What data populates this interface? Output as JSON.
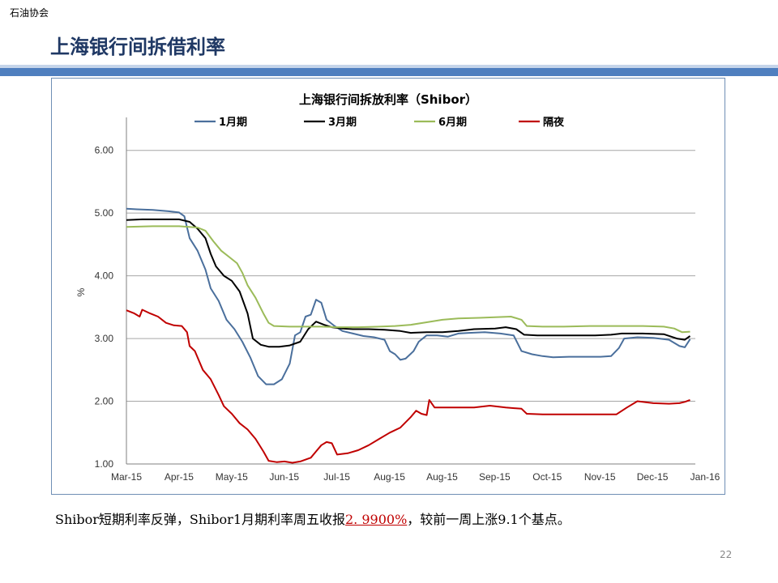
{
  "header": {
    "org": "石油协会",
    "title": "上海银行间拆借利率"
  },
  "caption": {
    "prefix": "Shibor短期利率反弹，Shibor1月期利率周五收报",
    "highlight": "2. 9900%",
    "suffix": "，较前一周上涨9.1个基点。"
  },
  "page_number": "22",
  "chart_data": {
    "type": "line",
    "title": "上海银行间拆放利率（Shibor）",
    "ylabel": "%",
    "xlabel": "",
    "ylim": [
      1.0,
      6.5
    ],
    "yticks": [
      "1.00",
      "2.00",
      "3.00",
      "4.00",
      "5.00",
      "6.00"
    ],
    "ytick_values": [
      1,
      2,
      3,
      4,
      5,
      6
    ],
    "xticks": [
      "Mar-15",
      "Apr-15",
      "May-15",
      "Jun-15",
      "Jul-15",
      "Aug-15",
      "Aug-15",
      "Sep-15",
      "Oct-15",
      "Nov-15",
      "Dec-15",
      "Jan-16"
    ],
    "grid": true,
    "legend_position": "top",
    "x_range": [
      0,
      10.8
    ],
    "series": [
      {
        "name": "1月期",
        "color": "#4a6f9c",
        "points": [
          [
            0,
            5.07
          ],
          [
            0.2,
            5.06
          ],
          [
            0.5,
            5.05
          ],
          [
            0.8,
            5.03
          ],
          [
            1.0,
            5.01
          ],
          [
            1.1,
            4.95
          ],
          [
            1.2,
            4.6
          ],
          [
            1.35,
            4.4
          ],
          [
            1.5,
            4.1
          ],
          [
            1.6,
            3.8
          ],
          [
            1.75,
            3.6
          ],
          [
            1.9,
            3.3
          ],
          [
            2.05,
            3.15
          ],
          [
            2.2,
            2.95
          ],
          [
            2.35,
            2.7
          ],
          [
            2.5,
            2.4
          ],
          [
            2.65,
            2.27
          ],
          [
            2.8,
            2.27
          ],
          [
            2.95,
            2.35
          ],
          [
            3.1,
            2.6
          ],
          [
            3.2,
            3.05
          ],
          [
            3.3,
            3.1
          ],
          [
            3.4,
            3.35
          ],
          [
            3.5,
            3.38
          ],
          [
            3.6,
            3.62
          ],
          [
            3.7,
            3.57
          ],
          [
            3.8,
            3.3
          ],
          [
            3.95,
            3.2
          ],
          [
            4.1,
            3.12
          ],
          [
            4.3,
            3.08
          ],
          [
            4.5,
            3.04
          ],
          [
            4.7,
            3.02
          ],
          [
            4.9,
            2.98
          ],
          [
            5.0,
            2.8
          ],
          [
            5.1,
            2.75
          ],
          [
            5.2,
            2.66
          ],
          [
            5.3,
            2.68
          ],
          [
            5.45,
            2.8
          ],
          [
            5.55,
            2.95
          ],
          [
            5.7,
            3.05
          ],
          [
            5.9,
            3.05
          ],
          [
            6.1,
            3.03
          ],
          [
            6.3,
            3.08
          ],
          [
            6.5,
            3.09
          ],
          [
            6.8,
            3.1
          ],
          [
            7.1,
            3.08
          ],
          [
            7.35,
            3.05
          ],
          [
            7.5,
            2.8
          ],
          [
            7.7,
            2.75
          ],
          [
            7.9,
            2.72
          ],
          [
            8.1,
            2.7
          ],
          [
            8.4,
            2.71
          ],
          [
            8.7,
            2.71
          ],
          [
            9.0,
            2.71
          ],
          [
            9.2,
            2.72
          ],
          [
            9.35,
            2.85
          ],
          [
            9.45,
            3.0
          ],
          [
            9.7,
            3.02
          ],
          [
            10.0,
            3.01
          ],
          [
            10.3,
            2.98
          ],
          [
            10.5,
            2.88
          ],
          [
            10.6,
            2.86
          ],
          [
            10.7,
            2.99
          ]
        ]
      },
      {
        "name": "3月期",
        "color": "#000000",
        "points": [
          [
            0,
            4.89
          ],
          [
            0.3,
            4.9
          ],
          [
            0.7,
            4.9
          ],
          [
            1.0,
            4.9
          ],
          [
            1.2,
            4.86
          ],
          [
            1.35,
            4.75
          ],
          [
            1.5,
            4.6
          ],
          [
            1.6,
            4.35
          ],
          [
            1.7,
            4.15
          ],
          [
            1.85,
            4.0
          ],
          [
            2.0,
            3.92
          ],
          [
            2.15,
            3.75
          ],
          [
            2.3,
            3.4
          ],
          [
            2.4,
            3.0
          ],
          [
            2.55,
            2.9
          ],
          [
            2.7,
            2.87
          ],
          [
            2.9,
            2.87
          ],
          [
            3.1,
            2.89
          ],
          [
            3.3,
            2.95
          ],
          [
            3.45,
            3.15
          ],
          [
            3.6,
            3.27
          ],
          [
            3.75,
            3.22
          ],
          [
            3.9,
            3.18
          ],
          [
            4.1,
            3.16
          ],
          [
            4.3,
            3.15
          ],
          [
            4.6,
            3.15
          ],
          [
            4.9,
            3.14
          ],
          [
            5.2,
            3.12
          ],
          [
            5.4,
            3.09
          ],
          [
            5.7,
            3.1
          ],
          [
            6.0,
            3.1
          ],
          [
            6.3,
            3.12
          ],
          [
            6.6,
            3.15
          ],
          [
            7.0,
            3.16
          ],
          [
            7.2,
            3.18
          ],
          [
            7.4,
            3.15
          ],
          [
            7.55,
            3.06
          ],
          [
            7.8,
            3.05
          ],
          [
            8.1,
            3.05
          ],
          [
            8.5,
            3.05
          ],
          [
            8.9,
            3.05
          ],
          [
            9.2,
            3.06
          ],
          [
            9.4,
            3.08
          ],
          [
            9.8,
            3.08
          ],
          [
            10.2,
            3.07
          ],
          [
            10.45,
            3.0
          ],
          [
            10.6,
            2.98
          ],
          [
            10.7,
            3.04
          ]
        ]
      },
      {
        "name": "6月期",
        "color": "#9bbb59",
        "points": [
          [
            0,
            4.78
          ],
          [
            0.5,
            4.79
          ],
          [
            1.0,
            4.79
          ],
          [
            1.35,
            4.77
          ],
          [
            1.5,
            4.72
          ],
          [
            1.65,
            4.55
          ],
          [
            1.8,
            4.4
          ],
          [
            1.95,
            4.3
          ],
          [
            2.1,
            4.2
          ],
          [
            2.2,
            4.05
          ],
          [
            2.3,
            3.85
          ],
          [
            2.45,
            3.65
          ],
          [
            2.6,
            3.4
          ],
          [
            2.7,
            3.25
          ],
          [
            2.8,
            3.2
          ],
          [
            3.1,
            3.19
          ],
          [
            3.4,
            3.19
          ],
          [
            3.7,
            3.19
          ],
          [
            4.0,
            3.18
          ],
          [
            4.4,
            3.18
          ],
          [
            4.8,
            3.19
          ],
          [
            5.1,
            3.2
          ],
          [
            5.4,
            3.22
          ],
          [
            5.7,
            3.26
          ],
          [
            6.0,
            3.3
          ],
          [
            6.3,
            3.32
          ],
          [
            6.7,
            3.33
          ],
          [
            7.0,
            3.34
          ],
          [
            7.3,
            3.35
          ],
          [
            7.5,
            3.3
          ],
          [
            7.6,
            3.2
          ],
          [
            7.9,
            3.19
          ],
          [
            8.3,
            3.19
          ],
          [
            8.8,
            3.2
          ],
          [
            9.3,
            3.2
          ],
          [
            9.8,
            3.2
          ],
          [
            10.2,
            3.19
          ],
          [
            10.4,
            3.16
          ],
          [
            10.55,
            3.1
          ],
          [
            10.7,
            3.11
          ]
        ]
      },
      {
        "name": "隔夜",
        "color": "#c00000",
        "points": [
          [
            0,
            3.45
          ],
          [
            0.15,
            3.4
          ],
          [
            0.25,
            3.35
          ],
          [
            0.3,
            3.46
          ],
          [
            0.45,
            3.4
          ],
          [
            0.6,
            3.35
          ],
          [
            0.75,
            3.25
          ],
          [
            0.9,
            3.21
          ],
          [
            1.05,
            3.2
          ],
          [
            1.15,
            3.1
          ],
          [
            1.2,
            2.88
          ],
          [
            1.3,
            2.8
          ],
          [
            1.45,
            2.5
          ],
          [
            1.6,
            2.35
          ],
          [
            1.75,
            2.1
          ],
          [
            1.85,
            1.92
          ],
          [
            2.0,
            1.8
          ],
          [
            2.15,
            1.65
          ],
          [
            2.3,
            1.55
          ],
          [
            2.45,
            1.4
          ],
          [
            2.6,
            1.2
          ],
          [
            2.7,
            1.05
          ],
          [
            2.85,
            1.03
          ],
          [
            3.0,
            1.04
          ],
          [
            3.15,
            1.02
          ],
          [
            3.3,
            1.04
          ],
          [
            3.5,
            1.1
          ],
          [
            3.6,
            1.2
          ],
          [
            3.7,
            1.3
          ],
          [
            3.8,
            1.35
          ],
          [
            3.9,
            1.33
          ],
          [
            4.0,
            1.15
          ],
          [
            4.2,
            1.17
          ],
          [
            4.4,
            1.22
          ],
          [
            4.6,
            1.3
          ],
          [
            4.8,
            1.4
          ],
          [
            5.0,
            1.5
          ],
          [
            5.2,
            1.58
          ],
          [
            5.4,
            1.75
          ],
          [
            5.5,
            1.85
          ],
          [
            5.6,
            1.8
          ],
          [
            5.7,
            1.78
          ],
          [
            5.75,
            2.02
          ],
          [
            5.85,
            1.9
          ],
          [
            6.2,
            1.9
          ],
          [
            6.6,
            1.9
          ],
          [
            6.9,
            1.93
          ],
          [
            7.2,
            1.9
          ],
          [
            7.5,
            1.88
          ],
          [
            7.6,
            1.8
          ],
          [
            7.9,
            1.79
          ],
          [
            8.3,
            1.79
          ],
          [
            8.8,
            1.79
          ],
          [
            9.3,
            1.79
          ],
          [
            9.5,
            1.9
          ],
          [
            9.7,
            2.0
          ],
          [
            10.0,
            1.97
          ],
          [
            10.3,
            1.96
          ],
          [
            10.5,
            1.97
          ],
          [
            10.6,
            1.99
          ],
          [
            10.7,
            2.02
          ]
        ]
      }
    ]
  }
}
